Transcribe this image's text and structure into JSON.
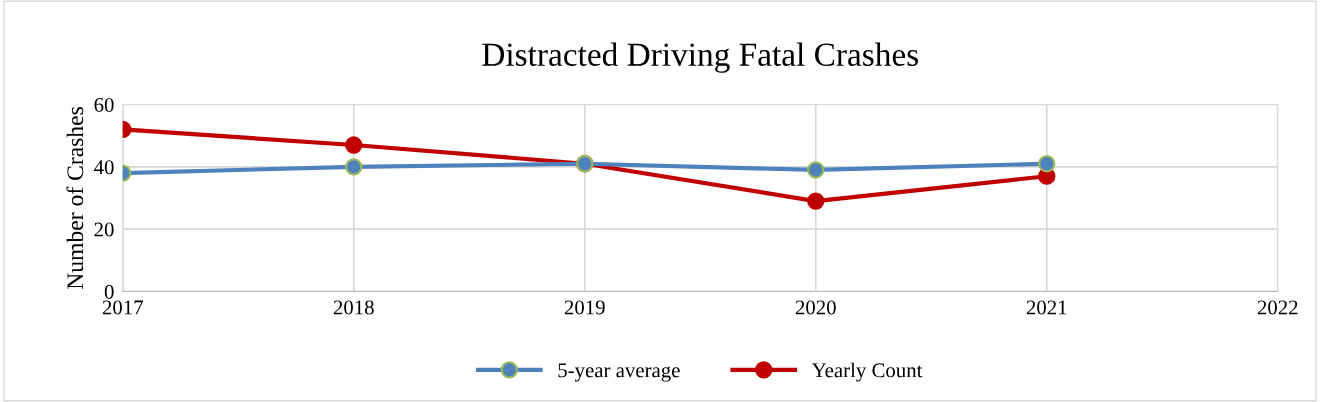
{
  "chart_data": {
    "type": "line",
    "title": "Distracted Driving Fatal Crashes",
    "ylabel": "Number of Crashes",
    "x": [
      2017,
      2018,
      2019,
      2020,
      2021
    ],
    "series": [
      {
        "name": "5-year average",
        "color": "#4f81bd",
        "values": [
          38,
          40,
          41,
          39,
          41
        ]
      },
      {
        "name": "Yearly Count",
        "color": "#c00000",
        "values": [
          52,
          47,
          41,
          29,
          37
        ]
      }
    ],
    "xlim": [
      2017,
      2022
    ],
    "xticks": [
      2017,
      2018,
      2019,
      2020,
      2021,
      2022
    ],
    "ylim": [
      0,
      60
    ],
    "yticks": [
      0,
      20,
      40,
      60
    ],
    "grid": true,
    "legend": "bottom",
    "marker": "circle",
    "line_style": "solid"
  }
}
